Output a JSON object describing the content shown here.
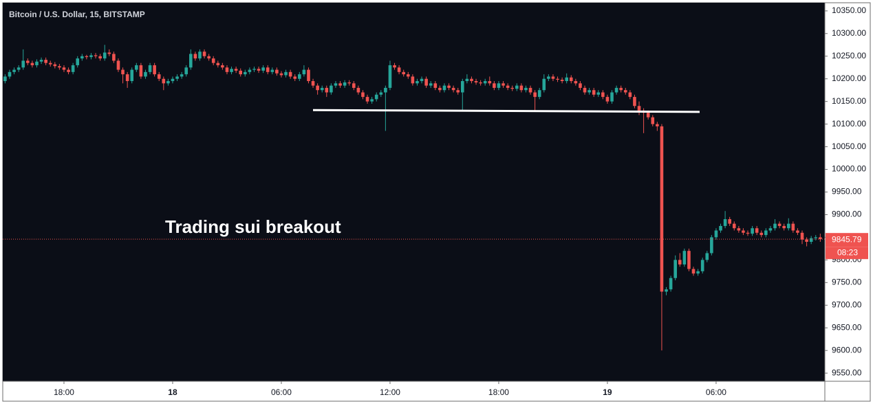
{
  "chart_data": {
    "type": "candlestick",
    "title": "Bitcoin / U.S. Dollar, 15, BITSTAMP",
    "annotation": "Trading sui breakout",
    "countdown": "08:23",
    "up_color": "#26a69a",
    "down_color": "#ef5350",
    "grid": false,
    "ylim": [
      9532,
      10368
    ],
    "yticks": [
      {
        "value": 9550,
        "label": "9550.00"
      },
      {
        "value": 9600,
        "label": "9600.00"
      },
      {
        "value": 9650,
        "label": "9650.00"
      },
      {
        "value": 9700,
        "label": "9700.00"
      },
      {
        "value": 9750,
        "label": "9750.00"
      },
      {
        "value": 9800,
        "label": "9800.00"
      },
      {
        "value": 9850,
        "label": "9850.00"
      },
      {
        "value": 9900,
        "label": "9900.00"
      },
      {
        "value": 9950,
        "label": "9950.00"
      },
      {
        "value": 10000,
        "label": "10000.00"
      },
      {
        "value": 10050,
        "label": "10050.00"
      },
      {
        "value": 10100,
        "label": "10100.00"
      },
      {
        "value": 10150,
        "label": "10150.00"
      },
      {
        "value": 10200,
        "label": "10200.00"
      },
      {
        "value": 10250,
        "label": "10250.00"
      },
      {
        "value": 10300,
        "label": "10300.00"
      },
      {
        "value": 10350,
        "label": "10350.00"
      }
    ],
    "support_line": [
      10131,
      10127
    ],
    "categories": [
      null,
      null,
      null,
      null,
      null,
      null,
      null,
      null,
      null,
      null,
      null,
      null,
      null,
      "18:00",
      null,
      null,
      null,
      null,
      null,
      null,
      null,
      null,
      null,
      null,
      null,
      null,
      null,
      null,
      null,
      null,
      null,
      null,
      null,
      null,
      null,
      null,
      null,
      "18",
      null,
      null,
      null,
      null,
      null,
      null,
      null,
      null,
      null,
      null,
      null,
      null,
      null,
      null,
      null,
      null,
      null,
      null,
      null,
      null,
      null,
      null,
      null,
      "06:00",
      null,
      null,
      null,
      null,
      null,
      null,
      null,
      null,
      null,
      null,
      null,
      null,
      null,
      null,
      null,
      null,
      null,
      null,
      null,
      null,
      null,
      null,
      null,
      "12:00",
      null,
      null,
      null,
      null,
      null,
      null,
      null,
      null,
      null,
      null,
      null,
      null,
      null,
      null,
      null,
      null,
      null,
      null,
      null,
      null,
      null,
      null,
      null,
      "18:00",
      null,
      null,
      null,
      null,
      null,
      null,
      null,
      null,
      null,
      null,
      null,
      null,
      null,
      null,
      null,
      null,
      null,
      null,
      null,
      null,
      null,
      null,
      null,
      "19",
      null,
      null,
      null,
      null,
      null,
      null,
      null,
      null,
      null,
      null,
      null,
      null,
      null,
      null,
      null,
      null,
      null,
      null,
      null,
      null,
      null,
      null,
      null,
      "06:00",
      null,
      null,
      null,
      null,
      null,
      null,
      null,
      null,
      null,
      null,
      null,
      null,
      null,
      null,
      null,
      null,
      null,
      null,
      null,
      null,
      null,
      null,
      null
    ],
    "candles": [
      [
        10195,
        10210,
        10190,
        10205
      ],
      [
        10205,
        10220,
        10200,
        10215
      ],
      [
        10215,
        10225,
        10210,
        10220
      ],
      [
        10220,
        10230,
        10215,
        10225
      ],
      [
        10225,
        10265,
        10220,
        10240
      ],
      [
        10240,
        10245,
        10230,
        10235
      ],
      [
        10235,
        10240,
        10225,
        10230
      ],
      [
        10230,
        10243,
        10225,
        10238
      ],
      [
        10238,
        10247,
        10233,
        10242
      ],
      [
        10242,
        10247,
        10230,
        10235
      ],
      [
        10235,
        10240,
        10227,
        10232
      ],
      [
        10232,
        10237,
        10223,
        10228
      ],
      [
        10228,
        10233,
        10220,
        10225
      ],
      [
        10225,
        10230,
        10215,
        10220
      ],
      [
        10220,
        10225,
        10210,
        10215
      ],
      [
        10215,
        10235,
        10210,
        10230
      ],
      [
        10230,
        10250,
        10225,
        10245
      ],
      [
        10245,
        10255,
        10240,
        10250
      ],
      [
        10250,
        10253,
        10243,
        10248
      ],
      [
        10248,
        10257,
        10243,
        10252
      ],
      [
        10252,
        10257,
        10245,
        10250
      ],
      [
        10250,
        10255,
        10240,
        10245
      ],
      [
        10245,
        10275,
        10240,
        10258
      ],
      [
        10258,
        10265,
        10250,
        10255
      ],
      [
        10255,
        10260,
        10235,
        10240
      ],
      [
        10240,
        10245,
        10215,
        10220
      ],
      [
        10220,
        10225,
        10190,
        10210
      ],
      [
        10210,
        10215,
        10180,
        10195
      ],
      [
        10195,
        10225,
        10190,
        10220
      ],
      [
        10220,
        10235,
        10215,
        10230
      ],
      [
        10230,
        10235,
        10200,
        10205
      ],
      [
        10205,
        10220,
        10200,
        10215
      ],
      [
        10215,
        10235,
        10210,
        10230
      ],
      [
        10230,
        10235,
        10205,
        10210
      ],
      [
        10210,
        10215,
        10195,
        10200
      ],
      [
        10200,
        10205,
        10175,
        10190
      ],
      [
        10190,
        10200,
        10185,
        10195
      ],
      [
        10195,
        10205,
        10190,
        10200
      ],
      [
        10200,
        10210,
        10195,
        10205
      ],
      [
        10205,
        10215,
        10200,
        10210
      ],
      [
        10210,
        10230,
        10205,
        10225
      ],
      [
        10225,
        10265,
        10220,
        10255
      ],
      [
        10255,
        10260,
        10240,
        10245
      ],
      [
        10245,
        10265,
        10240,
        10260
      ],
      [
        10260,
        10265,
        10245,
        10250
      ],
      [
        10250,
        10255,
        10240,
        10245
      ],
      [
        10245,
        10250,
        10230,
        10235
      ],
      [
        10235,
        10240,
        10225,
        10230
      ],
      [
        10230,
        10235,
        10220,
        10225
      ],
      [
        10225,
        10230,
        10210,
        10215
      ],
      [
        10215,
        10227,
        10210,
        10222
      ],
      [
        10222,
        10227,
        10213,
        10218
      ],
      [
        10218,
        10223,
        10205,
        10210
      ],
      [
        10210,
        10220,
        10205,
        10215
      ],
      [
        10215,
        10225,
        10210,
        10220
      ],
      [
        10220,
        10227,
        10215,
        10222
      ],
      [
        10222,
        10227,
        10213,
        10218
      ],
      [
        10218,
        10230,
        10213,
        10225
      ],
      [
        10225,
        10230,
        10210,
        10215
      ],
      [
        10215,
        10225,
        10210,
        10220
      ],
      [
        10220,
        10225,
        10207,
        10212
      ],
      [
        10212,
        10217,
        10203,
        10208
      ],
      [
        10208,
        10220,
        10203,
        10215
      ],
      [
        10215,
        10220,
        10200,
        10205
      ],
      [
        10205,
        10210,
        10195,
        10200
      ],
      [
        10200,
        10215,
        10195,
        10210
      ],
      [
        10210,
        10230,
        10205,
        10220
      ],
      [
        10220,
        10225,
        10190,
        10195
      ],
      [
        10195,
        10200,
        10180,
        10185
      ],
      [
        10185,
        10190,
        10165,
        10175
      ],
      [
        10175,
        10185,
        10170,
        10180
      ],
      [
        10180,
        10185,
        10160,
        10170
      ],
      [
        10170,
        10190,
        10165,
        10185
      ],
      [
        10185,
        10195,
        10180,
        10190
      ],
      [
        10190,
        10195,
        10180,
        10185
      ],
      [
        10185,
        10197,
        10180,
        10192
      ],
      [
        10192,
        10197,
        10185,
        10190
      ],
      [
        10190,
        10195,
        10175,
        10180
      ],
      [
        10180,
        10185,
        10165,
        10170
      ],
      [
        10170,
        10175,
        10155,
        10160
      ],
      [
        10160,
        10165,
        10145,
        10150
      ],
      [
        10150,
        10160,
        10145,
        10155
      ],
      [
        10155,
        10170,
        10150,
        10165
      ],
      [
        10165,
        10175,
        10160,
        10170
      ],
      [
        10170,
        10185,
        10085,
        10180
      ],
      [
        10180,
        10240,
        10175,
        10230
      ],
      [
        10230,
        10235,
        10220,
        10225
      ],
      [
        10225,
        10230,
        10210,
        10215
      ],
      [
        10215,
        10220,
        10205,
        10210
      ],
      [
        10210,
        10215,
        10200,
        10205
      ],
      [
        10205,
        10210,
        10185,
        10190
      ],
      [
        10190,
        10200,
        10185,
        10195
      ],
      [
        10195,
        10205,
        10190,
        10200
      ],
      [
        10200,
        10205,
        10180,
        10185
      ],
      [
        10185,
        10195,
        10180,
        10190
      ],
      [
        10190,
        10195,
        10175,
        10180
      ],
      [
        10180,
        10185,
        10170,
        10175
      ],
      [
        10175,
        10190,
        10170,
        10185
      ],
      [
        10185,
        10190,
        10175,
        10180
      ],
      [
        10180,
        10185,
        10170,
        10175
      ],
      [
        10175,
        10180,
        10165,
        10170
      ],
      [
        10170,
        10200,
        10130,
        10195
      ],
      [
        10195,
        10210,
        10190,
        10200
      ],
      [
        10200,
        10205,
        10190,
        10195
      ],
      [
        10195,
        10200,
        10187,
        10192
      ],
      [
        10192,
        10197,
        10185,
        10190
      ],
      [
        10190,
        10200,
        10185,
        10195
      ],
      [
        10195,
        10205,
        10185,
        10190
      ],
      [
        10190,
        10195,
        10175,
        10180
      ],
      [
        10180,
        10195,
        10175,
        10190
      ],
      [
        10190,
        10195,
        10180,
        10185
      ],
      [
        10185,
        10190,
        10175,
        10180
      ],
      [
        10180,
        10185,
        10173,
        10178
      ],
      [
        10178,
        10190,
        10173,
        10185
      ],
      [
        10185,
        10190,
        10170,
        10175
      ],
      [
        10175,
        10185,
        10170,
        10180
      ],
      [
        10180,
        10185,
        10165,
        10170
      ],
      [
        10170,
        10175,
        10130,
        10160
      ],
      [
        10160,
        10180,
        10155,
        10175
      ],
      [
        10175,
        10210,
        10170,
        10200
      ],
      [
        10200,
        10210,
        10195,
        10205
      ],
      [
        10205,
        10210,
        10195,
        10200
      ],
      [
        10200,
        10205,
        10193,
        10198
      ],
      [
        10198,
        10203,
        10190,
        10195
      ],
      [
        10195,
        10212,
        10190,
        10203
      ],
      [
        10203,
        10208,
        10190,
        10195
      ],
      [
        10195,
        10200,
        10185,
        10190
      ],
      [
        10190,
        10195,
        10175,
        10180
      ],
      [
        10180,
        10185,
        10165,
        10170
      ],
      [
        10170,
        10180,
        10165,
        10175
      ],
      [
        10175,
        10180,
        10160,
        10165
      ],
      [
        10165,
        10175,
        10160,
        10170
      ],
      [
        10170,
        10175,
        10155,
        10160
      ],
      [
        10160,
        10165,
        10145,
        10150
      ],
      [
        10150,
        10175,
        10145,
        10170
      ],
      [
        10170,
        10185,
        10165,
        10180
      ],
      [
        10180,
        10185,
        10170,
        10175
      ],
      [
        10175,
        10180,
        10165,
        10170
      ],
      [
        10170,
        10175,
        10155,
        10160
      ],
      [
        10160,
        10165,
        10135,
        10140
      ],
      [
        10140,
        10150,
        10120,
        10130
      ],
      [
        10130,
        10135,
        10080,
        10125
      ],
      [
        10125,
        10130,
        10110,
        10115
      ],
      [
        10115,
        10120,
        10095,
        10100
      ],
      [
        10100,
        10105,
        10085,
        10095
      ],
      [
        10095,
        10100,
        9600,
        9730
      ],
      [
        9730,
        9740,
        9722,
        9735
      ],
      [
        9735,
        9765,
        9730,
        9760
      ],
      [
        9760,
        9810,
        9755,
        9800
      ],
      [
        9800,
        9815,
        9785,
        9790
      ],
      [
        9790,
        9825,
        9785,
        9820
      ],
      [
        9820,
        9825,
        9775,
        9780
      ],
      [
        9780,
        9785,
        9765,
        9770
      ],
      [
        9770,
        9780,
        9765,
        9775
      ],
      [
        9775,
        9805,
        9770,
        9800
      ],
      [
        9800,
        9820,
        9795,
        9815
      ],
      [
        9815,
        9855,
        9810,
        9850
      ],
      [
        9850,
        9870,
        9845,
        9865
      ],
      [
        9865,
        9880,
        9860,
        9875
      ],
      [
        9875,
        9908,
        9870,
        9890
      ],
      [
        9890,
        9895,
        9875,
        9880
      ],
      [
        9880,
        9885,
        9865,
        9870
      ],
      [
        9870,
        9875,
        9860,
        9865
      ],
      [
        9865,
        9870,
        9855,
        9860
      ],
      [
        9860,
        9865,
        9853,
        9858
      ],
      [
        9858,
        9875,
        9853,
        9870
      ],
      [
        9870,
        9875,
        9855,
        9860
      ],
      [
        9860,
        9865,
        9850,
        9855
      ],
      [
        9855,
        9870,
        9850,
        9865
      ],
      [
        9865,
        9875,
        9860,
        9870
      ],
      [
        9870,
        9890,
        9865,
        9880
      ],
      [
        9880,
        9885,
        9870,
        9875
      ],
      [
        9875,
        9880,
        9865,
        9870
      ],
      [
        9870,
        9892,
        9865,
        9880
      ],
      [
        9880,
        9885,
        9860,
        9865
      ],
      [
        9865,
        9870,
        9855,
        9860
      ],
      [
        9860,
        9865,
        9835,
        9845
      ],
      [
        9845,
        9850,
        9830,
        9840
      ],
      [
        9840,
        9853,
        9835,
        9848
      ],
      [
        9848,
        9855,
        9843,
        9850
      ],
      [
        9850,
        9858,
        9840,
        9845.79
      ]
    ]
  }
}
